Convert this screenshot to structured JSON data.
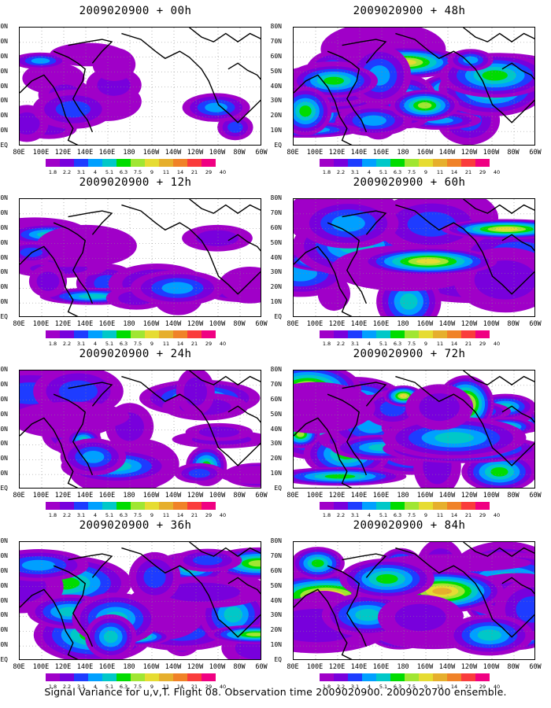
{
  "panels": [
    {
      "title": "2009020900 + 00h",
      "intensity": 0.15
    },
    {
      "title": "2009020900 + 48h",
      "intensity": 0.72
    },
    {
      "title": "2009020900 + 12h",
      "intensity": 0.32
    },
    {
      "title": "2009020900 + 60h",
      "intensity": 0.8
    },
    {
      "title": "2009020900 + 24h",
      "intensity": 0.5
    },
    {
      "title": "2009020900 + 72h",
      "intensity": 0.88
    },
    {
      "title": "2009020900 + 36h",
      "intensity": 0.62
    },
    {
      "title": "2009020900 + 84h",
      "intensity": 0.95
    }
  ],
  "lat_labels": [
    "80N",
    "70N",
    "60N",
    "50N",
    "40N",
    "30N",
    "20N",
    "10N",
    "EQ"
  ],
  "lon_labels": [
    "80E",
    "100E",
    "120E",
    "140E",
    "160E",
    "180",
    "160W",
    "140W",
    "120W",
    "100W",
    "80W",
    "60W"
  ],
  "colorbar": {
    "labels": [
      "1.8",
      "2.2",
      "3.1",
      "4",
      "5.1",
      "6.3",
      "7.5",
      "9",
      "11",
      "14",
      "21",
      "29",
      "40"
    ],
    "colors": [
      "#a000c8",
      "#7800dc",
      "#1e3cff",
      "#00a0ff",
      "#00c8c8",
      "#00dc00",
      "#a0e632",
      "#e6dc32",
      "#e6af2d",
      "#f08228",
      "#fa3c3c",
      "#f00082"
    ]
  },
  "caption": "Signal Variance for u,v,T. Flight 08. Observation time 2009020900. 2009020700 ensemble."
}
